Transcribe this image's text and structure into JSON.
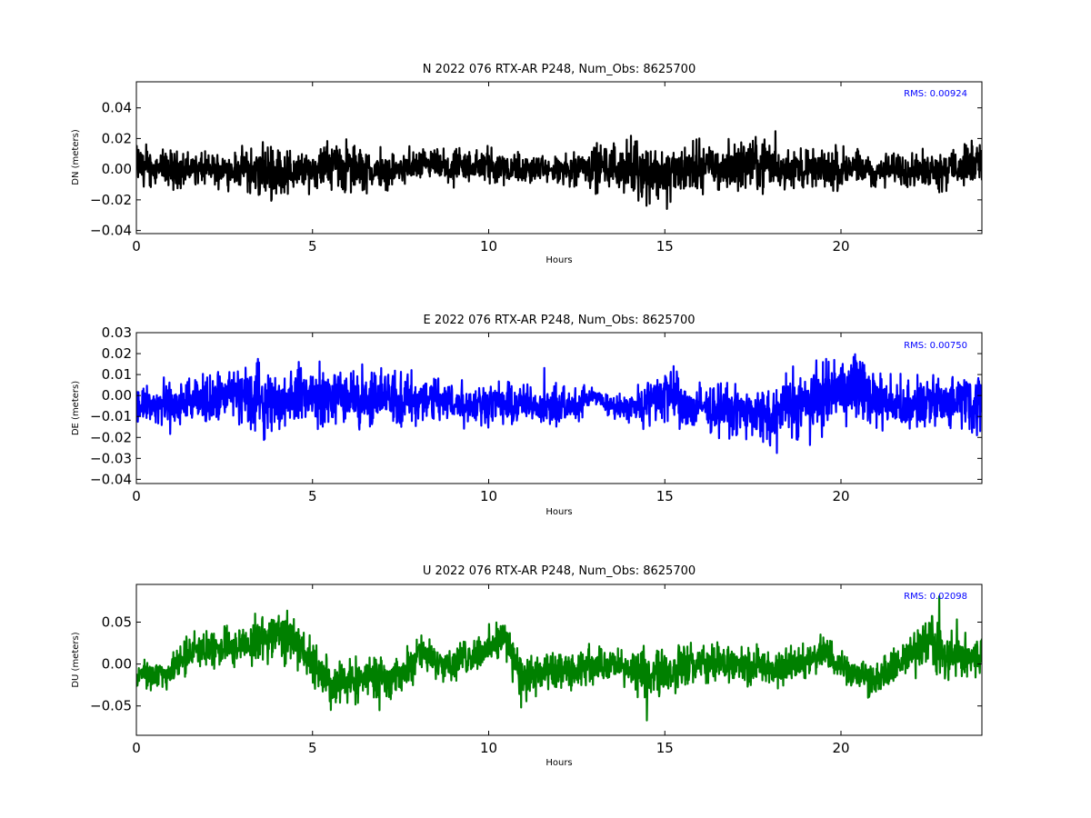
{
  "chart_data": [
    {
      "type": "line",
      "title": "N 2022 076 RTX-AR  P248, Num_Obs: 8625700",
      "xlabel": "Hours",
      "ylabel": "DN (meters)",
      "xlim": [
        0,
        24
      ],
      "ylim": [
        -0.042,
        0.057
      ],
      "xticks": [
        0,
        5,
        10,
        15,
        20
      ],
      "yticks": [
        -0.04,
        -0.02,
        0.0,
        0.02,
        0.04
      ],
      "ytick_labels": [
        "−0.04",
        "−0.02",
        "0.00",
        "0.02",
        "0.04"
      ],
      "color": "#000000",
      "annotation": "RMS:  0.00924",
      "annotation_color": "#0000ff",
      "grid": false,
      "series": [
        {
          "x": [
            0,
            0.5,
            1,
            1.5,
            2,
            2.5,
            3,
            3.5,
            4,
            4.5,
            5,
            5.5,
            6,
            6.5,
            7,
            7.5,
            8,
            8.5,
            9,
            9.5,
            10,
            10.5,
            11,
            11.5,
            12,
            12.5,
            13,
            13.5,
            14,
            14.5,
            15,
            15.5,
            16,
            16.5,
            17,
            17.5,
            18,
            18.5,
            19,
            19.5,
            20,
            20.5,
            21,
            21.5,
            22,
            22.5,
            23,
            23.5,
            24
          ],
          "center": [
            0.002,
            0.001,
            0.0,
            0.0,
            0.0,
            0.0,
            0.0,
            -0.002,
            -0.002,
            -0.002,
            0.0,
            0.002,
            0.002,
            0.0,
            -0.002,
            0.0,
            0.002,
            0.002,
            0.0,
            0.002,
            0.002,
            0.002,
            0.0,
            0.0,
            -0.002,
            0.002,
            0.002,
            0.002,
            0.0,
            -0.002,
            -0.004,
            0.0,
            0.002,
            0.002,
            0.002,
            0.004,
            0.002,
            0.0,
            0.0,
            0.0,
            0.0,
            0.0,
            -0.002,
            0.0,
            0.0,
            0.0,
            0.0,
            0.002,
            0.006
          ],
          "amplitude": [
            0.018,
            0.016,
            0.015,
            0.014,
            0.013,
            0.014,
            0.017,
            0.025,
            0.024,
            0.018,
            0.016,
            0.02,
            0.022,
            0.018,
            0.014,
            0.013,
            0.014,
            0.015,
            0.015,
            0.016,
            0.016,
            0.016,
            0.013,
            0.011,
            0.012,
            0.016,
            0.02,
            0.02,
            0.02,
            0.024,
            0.026,
            0.022,
            0.02,
            0.02,
            0.02,
            0.022,
            0.02,
            0.017,
            0.018,
            0.018,
            0.018,
            0.017,
            0.014,
            0.014,
            0.014,
            0.016,
            0.016,
            0.016,
            0.02
          ],
          "ymin": -0.041,
          "ymax": 0.056
        }
      ]
    },
    {
      "type": "line",
      "title": "E 2022 076 RTX-AR  P248, Num_Obs: 8625700",
      "xlabel": "Hours",
      "ylabel": "DE (meters)",
      "xlim": [
        0,
        24
      ],
      "ylim": [
        -0.042,
        0.03
      ],
      "xticks": [
        0,
        5,
        10,
        15,
        20
      ],
      "yticks": [
        -0.04,
        -0.03,
        -0.02,
        -0.01,
        0.0,
        0.01,
        0.02,
        0.03
      ],
      "ytick_labels": [
        "−0.04",
        "−0.03",
        "−0.02",
        "−0.01",
        "0.00",
        "0.01",
        "0.02",
        "0.03"
      ],
      "color": "#0000ff",
      "annotation": "RMS:  0.00750",
      "annotation_color": "#0000ff",
      "grid": false,
      "series": [
        {
          "x": [
            0,
            0.5,
            1,
            1.5,
            2,
            2.5,
            3,
            3.5,
            4,
            4.5,
            5,
            5.5,
            6,
            6.5,
            7,
            7.5,
            8,
            8.5,
            9,
            9.5,
            10,
            10.5,
            11,
            11.5,
            12,
            12.5,
            13,
            13.5,
            14,
            14.5,
            15,
            15.5,
            16,
            16.5,
            17,
            17.5,
            18,
            18.5,
            19,
            19.5,
            20,
            20.5,
            21,
            21.5,
            22,
            22.5,
            23,
            23.5,
            24
          ],
          "center": [
            -0.004,
            -0.005,
            -0.005,
            -0.004,
            -0.002,
            0.0,
            0.0,
            -0.002,
            -0.003,
            0.0,
            0.0,
            0.0,
            0.0,
            -0.002,
            0.0,
            -0.002,
            -0.002,
            -0.002,
            -0.004,
            -0.004,
            -0.003,
            -0.004,
            -0.004,
            -0.005,
            -0.006,
            -0.004,
            0.0,
            -0.006,
            -0.005,
            -0.004,
            0.002,
            -0.006,
            -0.006,
            -0.006,
            -0.008,
            -0.008,
            -0.012,
            -0.004,
            -0.004,
            0.0,
            0.004,
            0.004,
            -0.002,
            -0.004,
            -0.006,
            -0.004,
            -0.002,
            -0.002,
            -0.004
          ],
          "amplitude": [
            0.015,
            0.015,
            0.015,
            0.015,
            0.015,
            0.016,
            0.02,
            0.021,
            0.016,
            0.016,
            0.018,
            0.018,
            0.018,
            0.018,
            0.018,
            0.016,
            0.016,
            0.016,
            0.014,
            0.013,
            0.014,
            0.014,
            0.013,
            0.012,
            0.012,
            0.01,
            0.006,
            0.006,
            0.01,
            0.015,
            0.02,
            0.016,
            0.014,
            0.015,
            0.015,
            0.016,
            0.02,
            0.021,
            0.022,
            0.022,
            0.022,
            0.021,
            0.018,
            0.016,
            0.016,
            0.016,
            0.016,
            0.016,
            0.018
          ],
          "ymin": -0.041,
          "ymax": 0.029
        }
      ]
    },
    {
      "type": "line",
      "title": "U 2022 076 RTX-AR  P248, Num_Obs: 8625700",
      "xlabel": "Hours",
      "ylabel": "DU (meters)",
      "xlim": [
        0,
        24
      ],
      "ylim": [
        -0.085,
        0.095
      ],
      "xticks": [
        0,
        5,
        10,
        15,
        20
      ],
      "yticks": [
        -0.05,
        0.0,
        0.05
      ],
      "ytick_labels": [
        "−0.05",
        "0.00",
        "0.05"
      ],
      "color": "#008000",
      "annotation": "RMS:  0.02098",
      "annotation_color": "#0000ff",
      "grid": false,
      "series": [
        {
          "x": [
            0,
            0.5,
            1,
            1.5,
            2,
            2.5,
            3,
            3.5,
            4,
            4.5,
            5,
            5.5,
            6,
            6.5,
            7,
            7.5,
            8,
            8.5,
            9,
            9.5,
            10,
            10.5,
            11,
            11.5,
            12,
            12.5,
            13,
            13.5,
            14,
            14.5,
            15,
            15.5,
            16,
            16.5,
            17,
            17.5,
            18,
            18.5,
            19,
            19.5,
            20,
            20.5,
            21,
            21.5,
            22,
            22.5,
            23,
            23.5,
            24
          ],
          "center": [
            -0.012,
            -0.012,
            -0.008,
            0.012,
            0.018,
            0.018,
            0.022,
            0.03,
            0.035,
            0.03,
            0.0,
            -0.02,
            -0.02,
            -0.015,
            -0.015,
            -0.015,
            0.012,
            0.005,
            0.0,
            0.01,
            0.02,
            0.03,
            -0.02,
            -0.012,
            -0.01,
            -0.01,
            0.0,
            0.0,
            -0.008,
            -0.012,
            -0.01,
            -0.004,
            0.0,
            0.0,
            0.0,
            0.0,
            -0.008,
            -0.004,
            0.004,
            0.012,
            0.0,
            -0.015,
            -0.02,
            -0.006,
            0.012,
            0.03,
            0.008,
            0.008,
            0.01
          ],
          "amplitude": [
            0.025,
            0.025,
            0.026,
            0.03,
            0.03,
            0.03,
            0.032,
            0.035,
            0.04,
            0.038,
            0.034,
            0.036,
            0.036,
            0.034,
            0.032,
            0.03,
            0.03,
            0.028,
            0.026,
            0.028,
            0.03,
            0.034,
            0.038,
            0.034,
            0.03,
            0.028,
            0.026,
            0.026,
            0.03,
            0.036,
            0.04,
            0.038,
            0.032,
            0.03,
            0.03,
            0.03,
            0.03,
            0.03,
            0.03,
            0.028,
            0.026,
            0.026,
            0.028,
            0.03,
            0.036,
            0.045,
            0.04,
            0.035,
            0.032
          ],
          "ymin": -0.082,
          "ymax": 0.092
        }
      ]
    }
  ]
}
